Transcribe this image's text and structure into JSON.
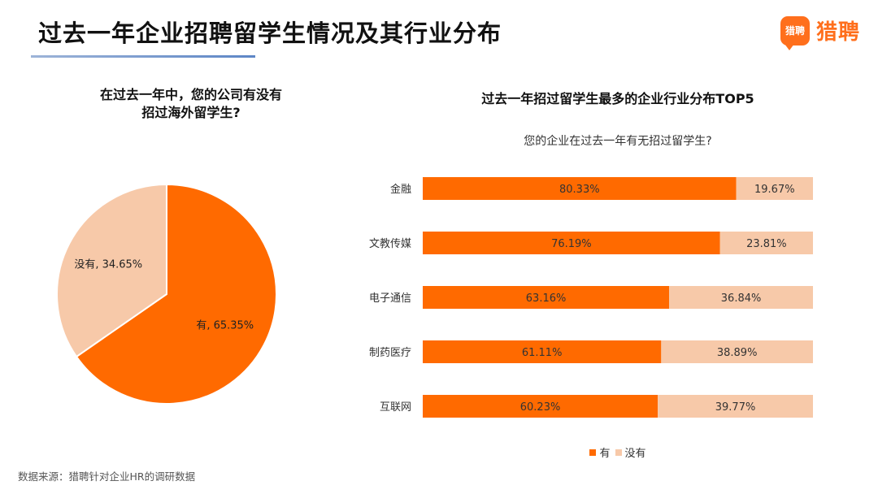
{
  "header": {
    "title": "过去一年企业招聘留学生情况及其行业分布",
    "logo_badge_text": "猎聘",
    "logo_text": "猎聘",
    "underline_colors": [
      "#9db4d8",
      "#5d86c6"
    ]
  },
  "colors": {
    "yes": "#ff6a00",
    "no": "#f7c9a9",
    "brand": "#ff6f1c"
  },
  "chart_data": [
    {
      "type": "pie",
      "title_lines": [
        "在过去一年中，您的公司有没有",
        "招过海外留学生?"
      ],
      "slices": [
        {
          "label": "有",
          "value": 65.35,
          "display": "有, 65.35%"
        },
        {
          "label": "没有",
          "value": 34.65,
          "display": "没有, 34.65%"
        }
      ]
    },
    {
      "type": "bar",
      "orientation": "horizontal",
      "stacked": true,
      "percent_stacked": true,
      "title": "过去一年招过留学生最多的企业行业分布TOP5",
      "subtitle": "您的企业在过去一年有无招过留学生?",
      "categories": [
        "金融",
        "文教传媒",
        "电子通信",
        "制药医疗",
        "互联网"
      ],
      "series": [
        {
          "name": "有",
          "values": [
            80.33,
            76.19,
            63.16,
            61.11,
            60.23
          ],
          "labels": [
            "80.33%",
            "76.19%",
            "63.16%",
            "61.11%",
            "60.23%"
          ]
        },
        {
          "name": "没有",
          "values": [
            19.67,
            23.81,
            36.84,
            38.89,
            39.77
          ],
          "labels": [
            "19.67%",
            "23.81%",
            "36.84%",
            "38.89%",
            "39.77%"
          ]
        }
      ],
      "xlim": [
        0,
        100
      ],
      "grid": false,
      "legend": "bottom"
    }
  ],
  "legend": {
    "yes": "有",
    "no": "没有"
  },
  "footnote": "数据来源：猎聘针对企业HR的调研数据"
}
